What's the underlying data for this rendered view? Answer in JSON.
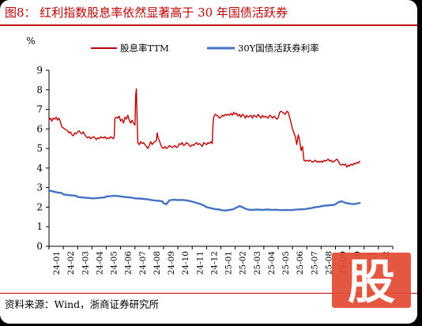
{
  "title": "图8：  红利指数股息率依然显著高于 30 年国债活跃券",
  "source": "资料来源：Wind，浙商证券研究所",
  "watermark": "股",
  "chart_data": {
    "type": "line",
    "unit_label": "%",
    "ylim": [
      0,
      9
    ],
    "yticks": [
      0,
      1,
      2,
      3,
      4,
      5,
      6,
      7,
      8,
      9
    ],
    "grid": false,
    "legend_position": "top",
    "x_ticks": [
      "24-01",
      "24-02",
      "24-03",
      "24-04",
      "24-05",
      "24-06",
      "24-07",
      "24-08",
      "24-09",
      "24-10",
      "24-11",
      "24-12",
      "25-01",
      "25-02",
      "25-03",
      "25-04",
      "25-05",
      "25-06",
      "25-07",
      "25-08",
      "25-09",
      "25-10",
      "25-11",
      "25-12"
    ],
    "series": [
      {
        "name": "股息率TTM",
        "color": "#c00000",
        "points": [
          [
            0.0,
            6.45
          ],
          [
            0.1,
            6.55
          ],
          [
            0.2,
            6.4
          ],
          [
            0.3,
            6.55
          ],
          [
            0.4,
            6.5
          ],
          [
            0.5,
            6.6
          ],
          [
            0.6,
            6.45
          ],
          [
            0.7,
            6.55
          ],
          [
            0.8,
            6.35
          ],
          [
            0.9,
            6.1
          ],
          [
            1.0,
            6.05
          ],
          [
            1.1,
            6.0
          ],
          [
            1.2,
            5.95
          ],
          [
            1.3,
            5.9
          ],
          [
            1.4,
            5.8
          ],
          [
            1.5,
            5.85
          ],
          [
            1.6,
            5.7
          ],
          [
            1.7,
            5.65
          ],
          [
            1.8,
            5.8
          ],
          [
            1.9,
            5.75
          ],
          [
            2.0,
            5.85
          ],
          [
            2.1,
            5.9
          ],
          [
            2.2,
            5.8
          ],
          [
            2.3,
            5.75
          ],
          [
            2.4,
            5.85
          ],
          [
            2.5,
            5.7
          ],
          [
            2.6,
            5.6
          ],
          [
            2.7,
            5.55
          ],
          [
            2.8,
            5.6
          ],
          [
            2.9,
            5.5
          ],
          [
            3.0,
            5.55
          ],
          [
            3.1,
            5.6
          ],
          [
            3.2,
            5.55
          ],
          [
            3.3,
            5.45
          ],
          [
            3.4,
            5.55
          ],
          [
            3.5,
            5.5
          ],
          [
            3.6,
            5.6
          ],
          [
            3.7,
            5.55
          ],
          [
            3.8,
            5.55
          ],
          [
            3.9,
            5.6
          ],
          [
            4.0,
            5.5
          ],
          [
            4.1,
            5.55
          ],
          [
            4.2,
            5.5
          ],
          [
            4.3,
            5.6
          ],
          [
            4.4,
            5.55
          ],
          [
            4.5,
            5.5
          ],
          [
            4.55,
            5.6
          ],
          [
            4.6,
            6.55
          ],
          [
            4.7,
            6.6
          ],
          [
            4.8,
            6.55
          ],
          [
            4.9,
            6.65
          ],
          [
            5.0,
            6.4
          ],
          [
            5.1,
            6.5
          ],
          [
            5.2,
            6.3
          ],
          [
            5.3,
            6.6
          ],
          [
            5.4,
            6.5
          ],
          [
            5.5,
            6.7
          ],
          [
            5.6,
            6.45
          ],
          [
            5.7,
            6.3
          ],
          [
            5.8,
            6.45
          ],
          [
            5.9,
            6.3
          ],
          [
            6.0,
            6.2
          ],
          [
            6.05,
            7.7
          ],
          [
            6.1,
            8.05
          ],
          [
            6.15,
            6.5
          ],
          [
            6.2,
            5.3
          ],
          [
            6.3,
            5.2
          ],
          [
            6.4,
            5.35
          ],
          [
            6.5,
            5.25
          ],
          [
            6.6,
            5.3
          ],
          [
            6.7,
            5.2
          ],
          [
            6.8,
            5.1
          ],
          [
            6.9,
            5.0
          ],
          [
            7.0,
            5.15
          ],
          [
            7.1,
            5.35
          ],
          [
            7.2,
            5.2
          ],
          [
            7.3,
            5.3
          ],
          [
            7.4,
            5.35
          ],
          [
            7.5,
            5.4
          ],
          [
            7.55,
            5.8
          ],
          [
            7.6,
            5.6
          ],
          [
            7.7,
            5.4
          ],
          [
            7.8,
            5.2
          ],
          [
            7.9,
            5.05
          ],
          [
            8.0,
            5.0
          ],
          [
            8.1,
            5.1
          ],
          [
            8.2,
            5.0
          ],
          [
            8.3,
            5.05
          ],
          [
            8.4,
            5.15
          ],
          [
            8.5,
            5.1
          ],
          [
            8.6,
            5.05
          ],
          [
            8.7,
            5.1
          ],
          [
            8.8,
            5.15
          ],
          [
            8.9,
            5.05
          ],
          [
            9.0,
            5.1
          ],
          [
            9.1,
            5.25
          ],
          [
            9.2,
            5.2
          ],
          [
            9.3,
            5.3
          ],
          [
            9.4,
            5.15
          ],
          [
            9.5,
            5.2
          ],
          [
            9.6,
            5.3
          ],
          [
            9.7,
            5.25
          ],
          [
            9.8,
            5.15
          ],
          [
            9.9,
            5.1
          ],
          [
            10.0,
            5.2
          ],
          [
            10.1,
            5.15
          ],
          [
            10.2,
            5.25
          ],
          [
            10.3,
            5.3
          ],
          [
            10.4,
            5.2
          ],
          [
            10.5,
            5.25
          ],
          [
            10.6,
            5.2
          ],
          [
            10.7,
            5.1
          ],
          [
            10.8,
            5.3
          ],
          [
            10.9,
            5.25
          ],
          [
            11.0,
            5.2
          ],
          [
            11.1,
            5.3
          ],
          [
            11.2,
            5.25
          ],
          [
            11.3,
            5.35
          ],
          [
            11.4,
            5.25
          ],
          [
            11.45,
            6.2
          ],
          [
            11.5,
            6.6
          ],
          [
            11.6,
            6.75
          ],
          [
            11.7,
            6.7
          ],
          [
            11.8,
            6.65
          ],
          [
            11.9,
            6.55
          ],
          [
            12.0,
            6.6
          ],
          [
            12.1,
            6.7
          ],
          [
            12.2,
            6.65
          ],
          [
            12.3,
            6.75
          ],
          [
            12.4,
            6.7
          ],
          [
            12.5,
            6.75
          ],
          [
            12.6,
            6.7
          ],
          [
            12.7,
            6.8
          ],
          [
            12.8,
            6.7
          ],
          [
            12.9,
            6.85
          ],
          [
            13.0,
            6.75
          ],
          [
            13.1,
            6.8
          ],
          [
            13.2,
            6.65
          ],
          [
            13.3,
            6.75
          ],
          [
            13.4,
            6.6
          ],
          [
            13.5,
            6.75
          ],
          [
            13.6,
            6.7
          ],
          [
            13.7,
            6.55
          ],
          [
            13.8,
            6.7
          ],
          [
            13.9,
            6.6
          ],
          [
            14.0,
            6.65
          ],
          [
            14.1,
            6.7
          ],
          [
            14.2,
            6.55
          ],
          [
            14.3,
            6.7
          ],
          [
            14.4,
            6.65
          ],
          [
            14.5,
            6.6
          ],
          [
            14.6,
            6.75
          ],
          [
            14.7,
            6.65
          ],
          [
            14.8,
            6.55
          ],
          [
            14.9,
            6.7
          ],
          [
            15.0,
            6.6
          ],
          [
            15.1,
            6.65
          ],
          [
            15.2,
            6.6
          ],
          [
            15.3,
            6.55
          ],
          [
            15.4,
            6.7
          ],
          [
            15.5,
            6.65
          ],
          [
            15.6,
            6.55
          ],
          [
            15.7,
            6.65
          ],
          [
            15.8,
            6.6
          ],
          [
            15.9,
            6.5
          ],
          [
            16.0,
            6.55
          ],
          [
            16.1,
            6.85
          ],
          [
            16.2,
            6.9
          ],
          [
            16.3,
            6.85
          ],
          [
            16.4,
            6.8
          ],
          [
            16.5,
            6.75
          ],
          [
            16.6,
            6.9
          ],
          [
            16.7,
            6.85
          ],
          [
            16.8,
            6.6
          ],
          [
            16.9,
            6.3
          ],
          [
            17.0,
            6.0
          ],
          [
            17.1,
            5.8
          ],
          [
            17.2,
            5.6
          ],
          [
            17.3,
            5.2
          ],
          [
            17.4,
            5.7
          ],
          [
            17.5,
            5.4
          ],
          [
            17.6,
            4.9
          ],
          [
            17.7,
            5.1
          ],
          [
            17.8,
            4.4
          ],
          [
            17.9,
            4.35
          ],
          [
            18.0,
            4.4
          ],
          [
            18.1,
            4.35
          ],
          [
            18.2,
            4.4
          ],
          [
            18.3,
            4.35
          ],
          [
            18.4,
            4.3
          ],
          [
            18.5,
            4.35
          ],
          [
            18.6,
            4.4
          ],
          [
            18.7,
            4.3
          ],
          [
            18.8,
            4.35
          ],
          [
            18.9,
            4.3
          ],
          [
            19.0,
            4.35
          ],
          [
            19.1,
            4.3
          ],
          [
            19.2,
            4.4
          ],
          [
            19.3,
            4.35
          ],
          [
            19.4,
            4.4
          ],
          [
            19.5,
            4.45
          ],
          [
            19.6,
            4.35
          ],
          [
            19.7,
            4.4
          ],
          [
            19.8,
            4.3
          ],
          [
            19.9,
            4.35
          ],
          [
            20.0,
            4.4
          ],
          [
            20.1,
            4.45
          ],
          [
            20.2,
            4.35
          ],
          [
            20.3,
            4.2
          ],
          [
            20.4,
            4.15
          ],
          [
            20.5,
            4.2
          ],
          [
            20.6,
            4.15
          ],
          [
            20.7,
            4.2
          ],
          [
            20.8,
            4.05
          ],
          [
            20.9,
            4.15
          ],
          [
            21.0,
            4.1
          ],
          [
            21.1,
            4.2
          ],
          [
            21.2,
            4.15
          ],
          [
            21.3,
            4.25
          ],
          [
            21.4,
            4.2
          ],
          [
            21.5,
            4.3
          ],
          [
            21.6,
            4.25
          ],
          [
            21.7,
            4.35
          ]
        ]
      },
      {
        "name": "30Y国债活跃券利率",
        "color": "#4472c4",
        "points": [
          [
            0.0,
            2.85
          ],
          [
            0.3,
            2.8
          ],
          [
            0.6,
            2.75
          ],
          [
            0.9,
            2.72
          ],
          [
            1.0,
            2.65
          ],
          [
            1.3,
            2.62
          ],
          [
            1.6,
            2.6
          ],
          [
            1.9,
            2.58
          ],
          [
            2.0,
            2.52
          ],
          [
            2.3,
            2.5
          ],
          [
            2.6,
            2.48
          ],
          [
            2.9,
            2.46
          ],
          [
            3.0,
            2.45
          ],
          [
            3.3,
            2.46
          ],
          [
            3.6,
            2.48
          ],
          [
            3.9,
            2.5
          ],
          [
            4.0,
            2.55
          ],
          [
            4.3,
            2.56
          ],
          [
            4.6,
            2.58
          ],
          [
            4.9,
            2.56
          ],
          [
            5.0,
            2.55
          ],
          [
            5.3,
            2.52
          ],
          [
            5.6,
            2.5
          ],
          [
            5.9,
            2.47
          ],
          [
            6.0,
            2.45
          ],
          [
            6.3,
            2.44
          ],
          [
            6.6,
            2.42
          ],
          [
            6.9,
            2.4
          ],
          [
            7.0,
            2.38
          ],
          [
            7.3,
            2.35
          ],
          [
            7.6,
            2.33
          ],
          [
            7.9,
            2.3
          ],
          [
            8.0,
            2.2
          ],
          [
            8.2,
            2.15
          ],
          [
            8.4,
            2.35
          ],
          [
            8.7,
            2.38
          ],
          [
            9.0,
            2.36
          ],
          [
            9.3,
            2.37
          ],
          [
            9.6,
            2.35
          ],
          [
            9.9,
            2.3
          ],
          [
            10.0,
            2.28
          ],
          [
            10.3,
            2.22
          ],
          [
            10.6,
            2.15
          ],
          [
            10.9,
            2.05
          ],
          [
            11.0,
            2.0
          ],
          [
            11.3,
            1.95
          ],
          [
            11.6,
            1.9
          ],
          [
            11.9,
            1.88
          ],
          [
            12.0,
            1.85
          ],
          [
            12.3,
            1.83
          ],
          [
            12.6,
            1.86
          ],
          [
            12.9,
            1.9
          ],
          [
            13.0,
            1.95
          ],
          [
            13.3,
            2.05
          ],
          [
            13.5,
            2.0
          ],
          [
            13.7,
            1.92
          ],
          [
            14.0,
            1.86
          ],
          [
            14.3,
            1.87
          ],
          [
            14.6,
            1.88
          ],
          [
            14.9,
            1.86
          ],
          [
            15.0,
            1.87
          ],
          [
            15.3,
            1.88
          ],
          [
            15.6,
            1.86
          ],
          [
            15.9,
            1.87
          ],
          [
            16.0,
            1.86
          ],
          [
            16.3,
            1.85
          ],
          [
            16.6,
            1.86
          ],
          [
            16.9,
            1.85
          ],
          [
            17.0,
            1.86
          ],
          [
            17.3,
            1.88
          ],
          [
            17.6,
            1.89
          ],
          [
            17.9,
            1.9
          ],
          [
            18.0,
            1.92
          ],
          [
            18.3,
            1.95
          ],
          [
            18.6,
            2.0
          ],
          [
            18.9,
            2.02
          ],
          [
            19.0,
            2.05
          ],
          [
            19.3,
            2.08
          ],
          [
            19.6,
            2.1
          ],
          [
            19.9,
            2.12
          ],
          [
            20.0,
            2.15
          ],
          [
            20.2,
            2.25
          ],
          [
            20.4,
            2.3
          ],
          [
            20.6,
            2.25
          ],
          [
            20.8,
            2.2
          ],
          [
            21.0,
            2.18
          ],
          [
            21.2,
            2.15
          ],
          [
            21.4,
            2.17
          ],
          [
            21.6,
            2.2
          ],
          [
            21.7,
            2.22
          ]
        ]
      }
    ]
  }
}
